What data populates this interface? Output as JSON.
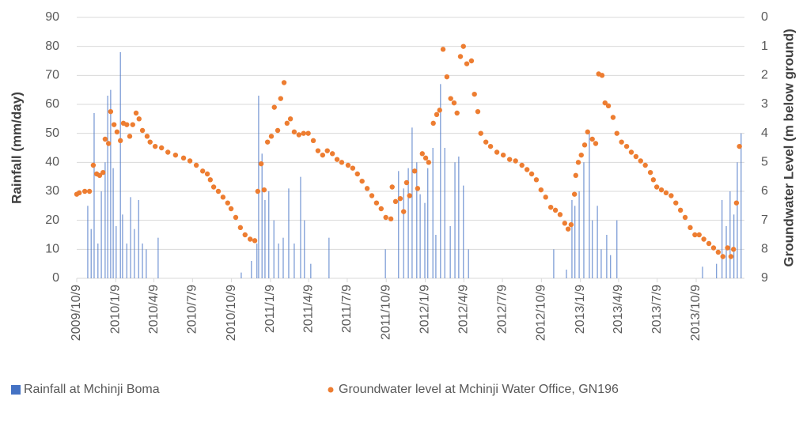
{
  "chart_data": {
    "type": "combo",
    "y_label": "Rainfall (mm/day)",
    "y2_label": "Groundwater Level (m below ground)",
    "xlim": [
      "2009/10/9",
      "2014/1/29"
    ],
    "xticks": [
      "2009/10/9",
      "2010/1/9",
      "2010/4/9",
      "2010/7/9",
      "2010/10/9",
      "2011/1/9",
      "2011/4/9",
      "2011/7/9",
      "2011/10/9",
      "2012/1/9",
      "2012/4/9",
      "2012/7/9",
      "2012/10/9",
      "2013/1/9",
      "2013/4/9",
      "2013/7/9",
      "2013/10/9"
    ],
    "ylim": [
      0,
      90
    ],
    "yticks": [
      0,
      10,
      20,
      30,
      40,
      50,
      60,
      70,
      80,
      90
    ],
    "y2lim": [
      9,
      0
    ],
    "y2ticks": [
      0,
      1,
      2,
      3,
      4,
      5,
      6,
      7,
      8,
      9
    ],
    "grid": true,
    "legend": "bottom",
    "series": [
      {
        "name": "Rainfall at Mchinji Boma",
        "type": "bar",
        "color": "#4472c4",
        "x": [
          "2009/11/4",
          "2009/11/12",
          "2009/11/19",
          "2009/11/28",
          "2009/12/6",
          "2009/12/15",
          "2009/12/21",
          "2009/12/28",
          "2010/1/3",
          "2010/1/10",
          "2010/1/20",
          "2010/1/25",
          "2010/2/4",
          "2010/2/13",
          "2010/2/22",
          "2010/3/4",
          "2010/3/13",
          "2010/3/22",
          "2010/4/19",
          "2010/11/1",
          "2010/11/25",
          "2010/12/8",
          "2010/12/12",
          "2010/12/20",
          "2010/12/27",
          "2011/1/5",
          "2011/1/17",
          "2011/1/28",
          "2011/2/8",
          "2011/2/21",
          "2011/3/6",
          "2011/3/21",
          "2011/3/30",
          "2011/4/14",
          "2011/5/27",
          "2011/10/7",
          "2011/11/7",
          "2011/11/19",
          "2011/11/30",
          "2011/12/9",
          "2011/12/20",
          "2011/12/28",
          "2012/1/8",
          "2012/1/15",
          "2012/1/27",
          "2012/2/3",
          "2012/2/14",
          "2012/2/24",
          "2012/3/8",
          "2012/3/19",
          "2012/3/28",
          "2012/4/8",
          "2012/4/20",
          "2012/11/7",
          "2012/12/7",
          "2012/12/20",
          "2012/12/27",
          "2013/1/6",
          "2013/1/17",
          "2013/1/30",
          "2013/2/6",
          "2013/2/18",
          "2013/2/27",
          "2013/3/12",
          "2013/3/21",
          "2013/4/5",
          "2013/10/24",
          "2013/11/26",
          "2013/12/9",
          "2013/12/19",
          "2013/12/28",
          "2014/1/6",
          "2014/1/14",
          "2014/1/23"
        ],
        "values": [
          25,
          17,
          57,
          12,
          30,
          40,
          63,
          65,
          38,
          18,
          78,
          22,
          12,
          28,
          17,
          27,
          12,
          10,
          14,
          2,
          6,
          12,
          63,
          43,
          27,
          30,
          20,
          12,
          14,
          31,
          12,
          35,
          20,
          5,
          14,
          10,
          37,
          31,
          38,
          52,
          40,
          29,
          26,
          38,
          45,
          15,
          67,
          45,
          18,
          40,
          42,
          32,
          10,
          10,
          3,
          27,
          25,
          30,
          40,
          50,
          20,
          25,
          10,
          15,
          8,
          20,
          4,
          5,
          27,
          18,
          30,
          22,
          40,
          50
        ]
      },
      {
        "name": "Groundwater level at Mchinji Water Office, GN196",
        "type": "scatter",
        "color": "#ed7d31",
        "axis": "y2",
        "x": [
          "2009/10/9",
          "2009/10/15",
          "2009/10/28",
          "2009/11/8",
          "2009/11/17",
          "2009/11/25",
          "2009/12/2",
          "2009/12/10",
          "2009/12/15",
          "2009/12/23",
          "2009/12/28",
          "2010/1/5",
          "2010/1/12",
          "2010/1/20",
          "2010/1/27",
          "2010/2/4",
          "2010/2/11",
          "2010/2/18",
          "2010/2/26",
          "2010/3/5",
          "2010/3/13",
          "2010/3/24",
          "2010/3/31",
          "2010/4/12",
          "2010/4/27",
          "2010/5/12",
          "2010/5/30",
          "2010/6/18",
          "2010/7/3",
          "2010/7/18",
          "2010/8/2",
          "2010/8/13",
          "2010/8/20",
          "2010/8/28",
          "2010/9/8",
          "2010/9/19",
          "2010/9/30",
          "2010/10/8",
          "2010/10/19",
          "2010/10/30",
          "2010/11/10",
          "2010/11/22",
          "2010/12/3",
          "2010/12/10",
          "2010/12/18",
          "2010/12/25",
          "2011/1/2",
          "2011/1/11",
          "2011/1/18",
          "2011/1/26",
          "2011/2/2",
          "2011/2/10",
          "2011/2/17",
          "2011/2/25",
          "2011/3/6",
          "2011/3/17",
          "2011/3/28",
          "2011/4/8",
          "2011/4/20",
          "2011/5/1",
          "2011/5/12",
          "2011/5/23",
          "2011/6/4",
          "2011/6/15",
          "2011/6/26",
          "2011/7/11",
          "2011/7/22",
          "2011/8/2",
          "2011/8/13",
          "2011/8/25",
          "2011/9/5",
          "2011/9/16",
          "2011/9/27",
          "2011/10/8",
          "2011/10/20",
          "2011/10/23",
          "2011/10/31",
          "2011/11/11",
          "2011/11/19",
          "2011/11/26",
          "2011/12/3",
          "2011/12/15",
          "2011/12/22",
          "2012/1/2",
          "2012/1/10",
          "2012/1/17",
          "2012/1/28",
          "2012/2/5",
          "2012/2/12",
          "2012/2/20",
          "2012/2/29",
          "2012/3/9",
          "2012/3/17",
          "2012/3/24",
          "2012/4/1",
          "2012/4/8",
          "2012/4/16",
          "2012/4/27",
          "2012/5/4",
          "2012/5/12",
          "2012/5/19",
          "2012/5/31",
          "2012/6/11",
          "2012/6/26",
          "2012/7/11",
          "2012/7/26",
          "2012/8/9",
          "2012/8/24",
          "2012/9/5",
          "2012/9/16",
          "2012/9/27",
          "2012/10/8",
          "2012/10/19",
          "2012/10/31",
          "2012/11/11",
          "2012/11/22",
          "2012/12/3",
          "2012/12/11",
          "2012/12/18",
          "2012/12/26",
          "2012/12/29",
          "2013/1/4",
          "2013/1/11",
          "2013/1/19",
          "2013/1/26",
          "2013/2/6",
          "2013/2/14",
          "2013/2/21",
          "2013/3/1",
          "2013/3/8",
          "2013/3/16",
          "2013/3/27",
          "2013/4/5",
          "2013/4/16",
          "2013/4/28",
          "2013/5/9",
          "2013/5/20",
          "2013/5/31",
          "2013/6/11",
          "2013/6/23",
          "2013/6/30",
          "2013/7/8",
          "2013/7/19",
          "2013/7/30",
          "2013/8/11",
          "2013/8/22",
          "2013/9/2",
          "2013/9/13",
          "2013/9/25",
          "2013/10/6",
          "2013/10/16",
          "2013/10/27",
          "2013/11/8",
          "2013/11/19",
          "2013/11/30",
          "2013/12/11",
          "2013/12/22",
          "2013/12/30",
          "2014/1/5",
          "2014/1/12",
          "2014/1/19"
        ],
        "values": [
          6.1,
          6.05,
          6.0,
          6.0,
          5.1,
          5.4,
          5.45,
          5.35,
          4.2,
          4.35,
          3.25,
          3.7,
          3.95,
          4.25,
          3.65,
          3.7,
          4.1,
          3.7,
          3.3,
          3.5,
          3.9,
          4.1,
          4.3,
          4.45,
          4.5,
          4.65,
          4.75,
          4.85,
          4.95,
          5.1,
          5.3,
          5.4,
          5.6,
          5.85,
          6.0,
          6.2,
          6.4,
          6.6,
          6.9,
          7.25,
          7.5,
          7.65,
          7.7,
          6.0,
          5.05,
          5.95,
          4.3,
          4.1,
          3.1,
          3.9,
          2.8,
          2.25,
          3.65,
          3.5,
          3.95,
          4.05,
          4.0,
          4.0,
          4.25,
          4.6,
          4.75,
          4.6,
          4.7,
          4.9,
          5.0,
          5.1,
          5.2,
          5.4,
          5.65,
          5.9,
          6.15,
          6.4,
          6.6,
          6.9,
          6.95,
          5.85,
          6.35,
          6.25,
          6.7,
          5.7,
          6.15,
          5.3,
          5.9,
          4.7,
          4.85,
          5.0,
          3.65,
          3.35,
          3.2,
          1.1,
          2.05,
          2.8,
          2.95,
          3.3,
          1.35,
          1.0,
          1.6,
          1.5,
          2.65,
          3.25,
          4.0,
          4.3,
          4.45,
          4.65,
          4.75,
          4.9,
          4.95,
          5.1,
          5.25,
          5.4,
          5.6,
          5.95,
          6.2,
          6.55,
          6.65,
          6.8,
          7.1,
          7.3,
          7.15,
          6.1,
          5.45,
          5.0,
          4.75,
          4.4,
          3.95,
          4.2,
          4.35,
          1.95,
          2.0,
          2.95,
          3.05,
          3.45,
          4.0,
          4.3,
          4.45,
          4.65,
          4.8,
          4.95,
          5.1,
          5.35,
          5.6,
          5.85,
          5.95,
          6.05,
          6.15,
          6.4,
          6.65,
          6.9,
          7.25,
          7.5,
          7.5,
          7.65,
          7.8,
          7.95,
          8.1,
          8.25,
          7.95,
          8.25,
          8.0,
          6.4,
          4.45
        ]
      }
    ]
  }
}
